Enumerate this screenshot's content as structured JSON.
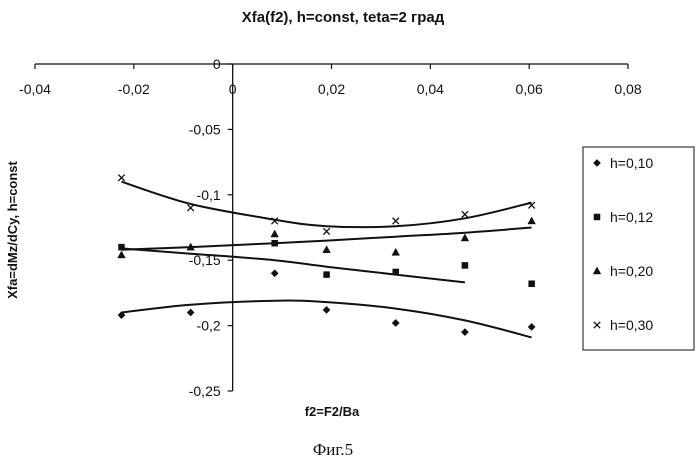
{
  "chart_data": {
    "type": "scatter",
    "title": "Xfa(f2), h=const, teta=2 град",
    "xlabel": "f2=F2/Ba",
    "ylabel": "Xfa=dMz/dCy, h=const",
    "xlim": [
      -0.04,
      0.08
    ],
    "ylim": [
      -0.25,
      0
    ],
    "x_ticks": [
      "-0,04",
      "-0,02",
      "0",
      "0,02",
      "0,04",
      "0,06",
      "0,08"
    ],
    "y_ticks": [
      "0",
      "-0,05",
      "-0,1",
      "-0,15",
      "-0,2",
      "-0,25"
    ],
    "x_axis_position": "top (y=0)",
    "trendlines": "polynomial",
    "series": [
      {
        "name": "h=0,10",
        "marker": "diamond",
        "x": [
          -0.0225,
          -0.0085,
          0.0085,
          0.019,
          0.033,
          0.047,
          0.0605
        ],
        "y": [
          -0.192,
          -0.19,
          -0.16,
          -0.188,
          -0.198,
          -0.205,
          -0.201
        ],
        "trend": [
          -0.19,
          -0.184,
          -0.181,
          -0.182,
          -0.187,
          -0.196,
          -0.209
        ]
      },
      {
        "name": "h=0,12",
        "marker": "square",
        "x": [
          -0.0225,
          0.0085,
          0.019,
          0.033,
          0.047,
          0.0605
        ],
        "y": [
          -0.14,
          -0.137,
          -0.161,
          -0.159,
          -0.154,
          -0.168
        ],
        "trend": [
          -0.141,
          -0.145,
          -0.15,
          -0.155,
          -0.161,
          -0.167
        ]
      },
      {
        "name": "h=0,20",
        "marker": "triangle",
        "x": [
          -0.0225,
          -0.0085,
          0.0085,
          0.019,
          0.033,
          0.047,
          0.0605
        ],
        "y": [
          -0.146,
          -0.14,
          -0.13,
          -0.142,
          -0.144,
          -0.133,
          -0.12
        ],
        "trend": [
          -0.142,
          -0.14,
          -0.137,
          -0.135,
          -0.132,
          -0.129,
          -0.125
        ]
      },
      {
        "name": "h=0,30",
        "marker": "x",
        "x": [
          -0.0225,
          -0.0085,
          0.0085,
          0.019,
          0.033,
          0.047,
          0.0605
        ],
        "y": [
          -0.087,
          -0.11,
          -0.12,
          -0.128,
          -0.12,
          -0.115,
          -0.108
        ],
        "trend": [
          -0.09,
          -0.107,
          -0.119,
          -0.124,
          -0.124,
          -0.118,
          -0.106
        ]
      }
    ]
  },
  "caption": "Фиг.5"
}
